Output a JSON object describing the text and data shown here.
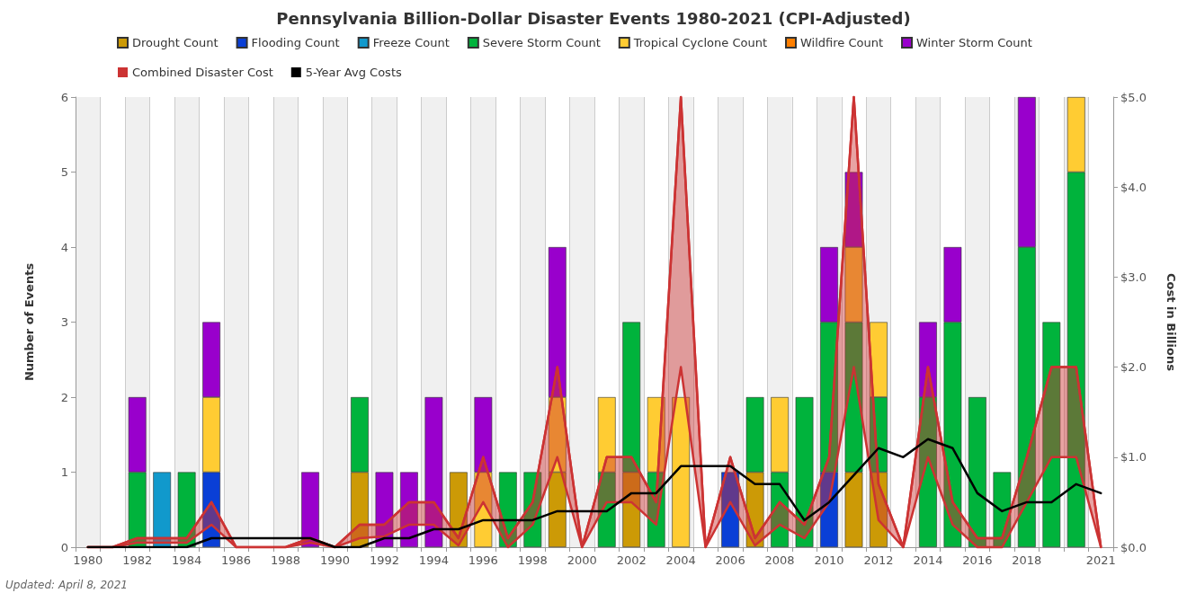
{
  "chart_data": {
    "type": "bar",
    "title": "Pennsylvania Billion-Dollar Disaster Events 1980-2021 (CPI-Adjusted)",
    "ylabel": "Number of Events",
    "y2label": "Cost in Billions",
    "annotations": [
      "Updated: April 8, 2021"
    ],
    "categories": [
      "1980",
      null,
      "1982",
      null,
      "1984",
      null,
      "1986",
      null,
      "1988",
      null,
      "1990",
      null,
      "1992",
      null,
      "1994",
      null,
      "1996",
      null,
      "1998",
      null,
      "2000",
      null,
      "2002",
      null,
      "2004",
      null,
      "2006",
      null,
      "2008",
      null,
      "2010",
      null,
      "2012",
      null,
      "2014",
      null,
      "2016",
      null,
      "2018",
      null,
      null,
      "2021"
    ],
    "stacked": true,
    "legend": "top",
    "grid": "x",
    "marker": "none",
    "line_style": "solid",
    "ylim": [
      0,
      6
    ],
    "yticks": [
      0,
      1,
      2,
      3,
      4,
      5,
      6
    ],
    "y2lim": [
      0,
      5
    ],
    "y2ticks": [
      {
        "value": 0,
        "label": "$0.0"
      },
      {
        "value": 1,
        "label": "$1.0"
      },
      {
        "value": 2,
        "label": "$2.0"
      },
      {
        "value": 3,
        "label": "$3.0"
      },
      {
        "value": 4,
        "label": "$4.0"
      },
      {
        "value": 5,
        "label": "$5.0"
      }
    ],
    "series": [
      {
        "name": "Drought Count",
        "color": "#cc9a06",
        "values": [
          0,
          0,
          0,
          0,
          0,
          0,
          0,
          0,
          0,
          0,
          0,
          1,
          0,
          0,
          0,
          1,
          0,
          0,
          0,
          1,
          0,
          0,
          1,
          0,
          0,
          0,
          0,
          1,
          0,
          0,
          0,
          1,
          1,
          0,
          0,
          0,
          0,
          0,
          0,
          0,
          0,
          0
        ]
      },
      {
        "name": "Flooding Count",
        "color": "#0a3fd6",
        "values": [
          0,
          0,
          0,
          0,
          0,
          1,
          0,
          0,
          0,
          0,
          0,
          0,
          0,
          0,
          0,
          0,
          0,
          0,
          0,
          0,
          0,
          0,
          0,
          0,
          0,
          0,
          1,
          0,
          0,
          0,
          1,
          0,
          0,
          0,
          0,
          0,
          0,
          0,
          0,
          0,
          0,
          0
        ]
      },
      {
        "name": "Freeze Count",
        "color": "#1199cc",
        "values": [
          0,
          0,
          0,
          1,
          0,
          0,
          0,
          0,
          0,
          0,
          0,
          0,
          0,
          0,
          0,
          0,
          0,
          0,
          0,
          0,
          0,
          0,
          0,
          0,
          0,
          0,
          0,
          0,
          0,
          0,
          0,
          0,
          0,
          0,
          0,
          0,
          0,
          0,
          0,
          0,
          0,
          0
        ]
      },
      {
        "name": "Severe Storm Count",
        "color": "#00b33c",
        "values": [
          0,
          0,
          1,
          0,
          1,
          0,
          0,
          0,
          0,
          0,
          0,
          1,
          0,
          0,
          0,
          0,
          0,
          1,
          1,
          0,
          0,
          1,
          2,
          1,
          0,
          0,
          0,
          1,
          1,
          2,
          2,
          2,
          1,
          0,
          2,
          3,
          2,
          1,
          4,
          3,
          5,
          0
        ]
      },
      {
        "name": "Tropical Cyclone Count",
        "color": "#ffcc33",
        "values": [
          0,
          0,
          0,
          0,
          0,
          1,
          0,
          0,
          0,
          0,
          0,
          0,
          0,
          0,
          0,
          0,
          1,
          0,
          0,
          1,
          0,
          1,
          0,
          1,
          2,
          0,
          0,
          0,
          1,
          0,
          0,
          1,
          1,
          0,
          0,
          0,
          0,
          0,
          0,
          0,
          1,
          0
        ]
      },
      {
        "name": "Wildfire Count",
        "color": "#ff7f00",
        "values": [
          0,
          0,
          0,
          0,
          0,
          0,
          0,
          0,
          0,
          0,
          0,
          0,
          0,
          0,
          0,
          0,
          0,
          0,
          0,
          0,
          0,
          0,
          0,
          0,
          0,
          0,
          0,
          0,
          0,
          0,
          0,
          0,
          0,
          0,
          0,
          0,
          0,
          0,
          0,
          0,
          0,
          0
        ]
      },
      {
        "name": "Winter Storm Count",
        "color": "#9900cc",
        "values": [
          0,
          0,
          1,
          0,
          0,
          1,
          0,
          0,
          0,
          1,
          0,
          0,
          1,
          1,
          2,
          0,
          1,
          0,
          0,
          2,
          0,
          0,
          0,
          0,
          0,
          0,
          0,
          0,
          0,
          0,
          1,
          1,
          0,
          0,
          1,
          1,
          0,
          0,
          2,
          0,
          0,
          0
        ]
      },
      {
        "name": "Combined Disaster Cost",
        "color": "#cc3333",
        "type": "line",
        "axis": "y2",
        "values": [
          0,
          0,
          0.1,
          0.1,
          0.1,
          0.5,
          0,
          0,
          0,
          0.1,
          0,
          0.25,
          0.25,
          0.5,
          0.5,
          0.1,
          1,
          0.1,
          0.5,
          2,
          0,
          1,
          1,
          0.5,
          5,
          0,
          1,
          0.1,
          0.5,
          0.25,
          1,
          5,
          0.7,
          0,
          2,
          0.5,
          0.1,
          0.1,
          1,
          2,
          2,
          0
        ],
        "lower": [
          0,
          0,
          0.05,
          0.05,
          0.05,
          0.25,
          0,
          0,
          0,
          0.05,
          0,
          0.1,
          0.12,
          0.25,
          0.25,
          0.02,
          0.5,
          0,
          0.25,
          1,
          0,
          0.5,
          0.5,
          0.25,
          2,
          0,
          0.5,
          0.02,
          0.25,
          0.1,
          0.5,
          2,
          0.3,
          0,
          1,
          0.25,
          0,
          0,
          0.5,
          1,
          1,
          0
        ],
        "upper": [
          0,
          0,
          0.1,
          0.1,
          0.1,
          0.5,
          0,
          0,
          0,
          0.1,
          0,
          0.25,
          0.25,
          0.5,
          0.5,
          0.1,
          1,
          0.1,
          0.5,
          2,
          0,
          1,
          1,
          0.5,
          5,
          0,
          1,
          0.1,
          0.5,
          0.25,
          1,
          5,
          0.7,
          0,
          2,
          0.5,
          0.1,
          0.1,
          1,
          2,
          2,
          0
        ]
      },
      {
        "name": "5-Year Avg Costs",
        "color": "#000000",
        "type": "line",
        "axis": "y2",
        "values": [
          0,
          0,
          0,
          0,
          0,
          0.1,
          0.1,
          0.1,
          0.1,
          0.1,
          0,
          0,
          0.1,
          0.1,
          0.2,
          0.2,
          0.3,
          0.3,
          0.3,
          0.4,
          0.4,
          0.4,
          0.6,
          0.6,
          0.9,
          0.9,
          0.9,
          0.7,
          0.7,
          0.3,
          0.5,
          0.8,
          1.1,
          1,
          1.2,
          1.1,
          0.6,
          0.4,
          0.5,
          0.5,
          0.7,
          0.6
        ]
      }
    ]
  }
}
